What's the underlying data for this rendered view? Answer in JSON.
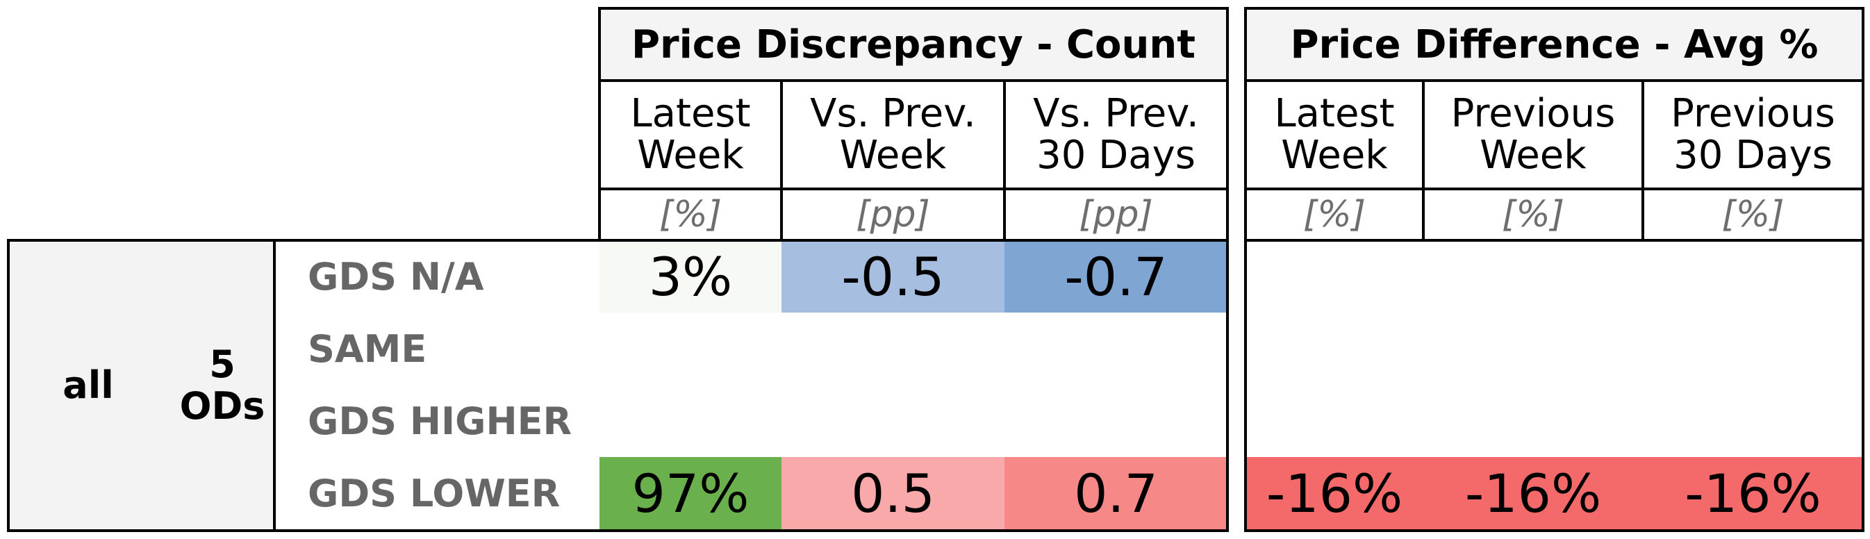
{
  "colors": {
    "header_bg": "#f4f4f4",
    "group_bg": "#f3f3f3",
    "na_latest": "#f7f9f5",
    "blue_light": "#a6bee0",
    "blue_mid": "#7fa6d2",
    "green": "#6ab04c",
    "red_light": "#f9a9a9",
    "red_mid": "#f78888",
    "red_strong": "#f46a6a"
  },
  "chart_data": {
    "type": "table",
    "sections": [
      {
        "title": "Price Discrepancy - Count",
        "columns": [
          {
            "label": "Latest\nWeek",
            "unit": "[%]"
          },
          {
            "label": "Vs. Prev.\nWeek",
            "unit": "[pp]"
          },
          {
            "label": "Vs. Prev.\n30 Days",
            "unit": "[pp]"
          }
        ]
      },
      {
        "title": "Price Difference - Avg %",
        "columns": [
          {
            "label": "Latest\nWeek",
            "unit": "[%]"
          },
          {
            "label": "Previous\nWeek",
            "unit": "[%]"
          },
          {
            "label": "Previous\n30 Days",
            "unit": "[%]"
          }
        ]
      }
    ],
    "group": {
      "label1": "all",
      "label2": "5\nODs"
    },
    "rows": [
      {
        "label": "GDS N/A",
        "values": [
          "3%",
          "-0.5",
          "-0.7",
          "",
          "",
          ""
        ]
      },
      {
        "label": "SAME",
        "values": [
          "",
          "",
          "",
          "",
          "",
          ""
        ]
      },
      {
        "label": "GDS HIGHER",
        "values": [
          "",
          "",
          "",
          "",
          "",
          ""
        ]
      },
      {
        "label": "GDS LOWER",
        "values": [
          "97%",
          "0.5",
          "0.7",
          "-16%",
          "-16%",
          "-16%"
        ]
      }
    ]
  }
}
